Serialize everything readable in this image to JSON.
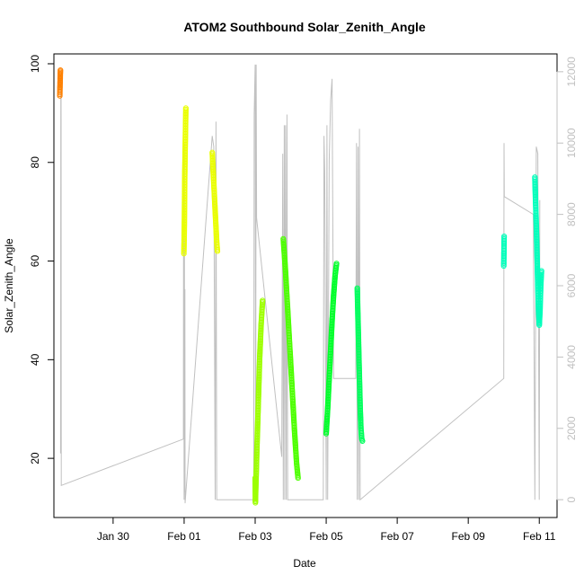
{
  "chart_data": {
    "type": "scatter",
    "title": "ATOM2 Southbound Solar_Zenith_Angle",
    "xlabel": "Date",
    "ylabel": "Solar_Zenith_Angle",
    "xlim": [
      "2024-01-28T08:00",
      "2024-02-11T12:00"
    ],
    "ylim": [
      8,
      102
    ],
    "y2lim": [
      -500,
      12500
    ],
    "x_ticks": [
      "Jan 30",
      "Feb 01",
      "Feb 03",
      "Feb 05",
      "Feb 07",
      "Feb 09",
      "Feb 11"
    ],
    "x_tick_dates": [
      "2024-01-30",
      "2024-02-01",
      "2024-02-03",
      "2024-02-05",
      "2024-02-07",
      "2024-02-09",
      "2024-02-11"
    ],
    "y_ticks": [
      20,
      40,
      60,
      80,
      100
    ],
    "y2_ticks": [
      0,
      2000,
      4000,
      6000,
      8000,
      10000,
      12000
    ],
    "grid": false,
    "colors": {
      "line": "#c0c0c0",
      "palette": [
        "#ff8000",
        "#eaff00",
        "#9dff00",
        "#4cff00",
        "#00ff2a",
        "#00ff5d",
        "#00ffbb"
      ]
    },
    "series": [
      {
        "color_index": 0,
        "points": [
          [
            "2024-01-28T12:00",
            93.5
          ],
          [
            "2024-01-28T12:05",
            95
          ],
          [
            "2024-01-28T12:10",
            96
          ],
          [
            "2024-01-28T12:15",
            97
          ],
          [
            "2024-01-28T12:20",
            98
          ],
          [
            "2024-01-28T12:25",
            98.7
          ]
        ]
      },
      {
        "color_index": 1,
        "points": [
          [
            "2024-01-31T23:50",
            61.5
          ],
          [
            "2024-01-31T23:55",
            63
          ],
          [
            "2024-02-01T00:00",
            64.5
          ],
          [
            "2024-02-01T00:10",
            68
          ],
          [
            "2024-02-01T00:15",
            71
          ],
          [
            "2024-02-01T00:20",
            74
          ],
          [
            "2024-02-01T00:25",
            77
          ],
          [
            "2024-02-01T00:30",
            79
          ],
          [
            "2024-02-01T00:40",
            82
          ],
          [
            "2024-02-01T00:50",
            85
          ],
          [
            "2024-02-01T01:00",
            88
          ],
          [
            "2024-02-01T01:10",
            91
          ]
        ]
      },
      {
        "color_index": 1,
        "points": [
          [
            "2024-02-01T19:00",
            82
          ],
          [
            "2024-02-01T19:30",
            79
          ],
          [
            "2024-02-01T20:00",
            76
          ],
          [
            "2024-02-01T20:30",
            73
          ],
          [
            "2024-02-01T21:00",
            70
          ],
          [
            "2024-02-01T21:30",
            67
          ],
          [
            "2024-02-01T22:00",
            64
          ],
          [
            "2024-02-01T22:30",
            62
          ]
        ]
      },
      {
        "color_index": 2,
        "points": [
          [
            "2024-02-03T00:00",
            16
          ],
          [
            "2024-02-03T00:05",
            13
          ],
          [
            "2024-02-03T00:10",
            11
          ],
          [
            "2024-02-03T01:00",
            20
          ],
          [
            "2024-02-03T02:00",
            30
          ],
          [
            "2024-02-03T03:00",
            40
          ],
          [
            "2024-02-03T04:00",
            47
          ],
          [
            "2024-02-03T05:00",
            52
          ]
        ]
      },
      {
        "color_index": 3,
        "points": [
          [
            "2024-02-03T19:00",
            64.5
          ],
          [
            "2024-02-03T20:30",
            58
          ],
          [
            "2024-02-03T22:00",
            50
          ],
          [
            "2024-02-03T23:30",
            42
          ],
          [
            "2024-02-04T01:00",
            34
          ],
          [
            "2024-02-04T02:30",
            26
          ],
          [
            "2024-02-04T04:00",
            19
          ],
          [
            "2024-02-04T05:00",
            16
          ]
        ]
      },
      {
        "color_index": 4,
        "points": [
          [
            "2024-02-05T00:00",
            25
          ],
          [
            "2024-02-05T01:00",
            30
          ],
          [
            "2024-02-05T02:00",
            36
          ],
          [
            "2024-02-05T03:00",
            42
          ],
          [
            "2024-02-05T04:00",
            48
          ],
          [
            "2024-02-05T05:00",
            53
          ],
          [
            "2024-02-05T06:00",
            57
          ],
          [
            "2024-02-05T07:00",
            59.5
          ]
        ]
      },
      {
        "color_index": 5,
        "points": [
          [
            "2024-02-05T21:00",
            54.5
          ],
          [
            "2024-02-05T21:30",
            48
          ],
          [
            "2024-02-05T22:00",
            42
          ],
          [
            "2024-02-05T22:30",
            36
          ],
          [
            "2024-02-05T23:00",
            30
          ],
          [
            "2024-02-05T23:30",
            26
          ],
          [
            "2024-02-06T00:00",
            24
          ],
          [
            "2024-02-06T00:30",
            23.5
          ]
        ]
      },
      {
        "color_index": 6,
        "points": [
          [
            "2024-02-10T00:00",
            59
          ],
          [
            "2024-02-10T00:05",
            61
          ],
          [
            "2024-02-10T00:10",
            63
          ],
          [
            "2024-02-10T00:15",
            65
          ]
        ]
      },
      {
        "color_index": 6,
        "points": [
          [
            "2024-02-10T21:00",
            77
          ],
          [
            "2024-02-10T21:30",
            72
          ],
          [
            "2024-02-10T22:00",
            67
          ],
          [
            "2024-02-10T22:30",
            61
          ],
          [
            "2024-02-10T23:00",
            55
          ],
          [
            "2024-02-10T23:30",
            50
          ],
          [
            "2024-02-11T00:00",
            47
          ],
          [
            "2024-02-11T00:30",
            50
          ],
          [
            "2024-02-11T01:00",
            55
          ],
          [
            "2024-02-11T01:30",
            58
          ]
        ]
      }
    ],
    "secondary_line": [
      [
        "2024-01-28T12:30",
        1300
      ],
      [
        "2024-01-28T12:40",
        11400
      ],
      [
        "2024-01-28T12:50",
        11600
      ],
      [
        "2024-01-28T13:00",
        400
      ],
      [
        "2024-01-31T23:30",
        1700
      ],
      [
        "2024-01-31T23:40",
        10200
      ],
      [
        "2024-02-01T00:00",
        0
      ],
      [
        "2024-02-01T00:10",
        10000
      ],
      [
        "2024-02-01T00:20",
        200
      ],
      [
        "2024-02-01T00:30",
        5900
      ],
      [
        "2024-02-01T00:40",
        -100
      ],
      [
        "2024-02-01T19:00",
        10200
      ],
      [
        "2024-02-01T20:00",
        9900
      ],
      [
        "2024-02-01T21:00",
        0
      ],
      [
        "2024-02-01T21:30",
        10600
      ],
      [
        "2024-02-01T22:00",
        0
      ],
      [
        "2024-02-02T23:00",
        0
      ],
      [
        "2024-02-02T23:20",
        10800
      ],
      [
        "2024-02-03T00:00",
        12200
      ],
      [
        "2024-02-03T00:20",
        0
      ],
      [
        "2024-02-03T00:40",
        12200
      ],
      [
        "2024-02-03T01:00",
        7900
      ],
      [
        "2024-02-03T18:00",
        1200
      ],
      [
        "2024-02-03T18:40",
        9700
      ],
      [
        "2024-02-03T19:00",
        0
      ],
      [
        "2024-02-03T19:40",
        10500
      ],
      [
        "2024-02-03T20:00",
        0
      ],
      [
        "2024-02-03T20:30",
        10500
      ],
      [
        "2024-02-03T21:00",
        0
      ],
      [
        "2024-02-03T21:30",
        10800
      ],
      [
        "2024-02-03T22:00",
        0
      ],
      [
        "2024-02-04T22:00",
        0
      ],
      [
        "2024-02-04T22:30",
        10200
      ],
      [
        "2024-02-04T23:00",
        9200
      ],
      [
        "2024-02-05T00:00",
        0
      ],
      [
        "2024-02-05T00:30",
        10500
      ],
      [
        "2024-02-05T01:00",
        0
      ],
      [
        "2024-02-05T02:00",
        9500
      ],
      [
        "2024-02-05T03:00",
        11200
      ],
      [
        "2024-02-05T04:00",
        11800
      ],
      [
        "2024-02-05T05:00",
        3400
      ],
      [
        "2024-02-05T20:00",
        3400
      ],
      [
        "2024-02-05T20:30",
        10000
      ],
      [
        "2024-02-05T21:00",
        0
      ],
      [
        "2024-02-05T21:30",
        9900
      ],
      [
        "2024-02-05T22:00",
        0
      ],
      [
        "2024-02-05T22:30",
        10400
      ],
      [
        "2024-02-05T23:00",
        0
      ],
      [
        "2024-02-10T00:00",
        3400
      ],
      [
        "2024-02-10T00:10",
        10000
      ],
      [
        "2024-02-10T00:20",
        8500
      ],
      [
        "2024-02-10T20:00",
        8000
      ],
      [
        "2024-02-10T21:00",
        0
      ],
      [
        "2024-02-10T22:00",
        9900
      ],
      [
        "2024-02-10T23:00",
        9700
      ],
      [
        "2024-02-11T00:00",
        0
      ],
      [
        "2024-02-11T00:20",
        8400
      ]
    ]
  }
}
